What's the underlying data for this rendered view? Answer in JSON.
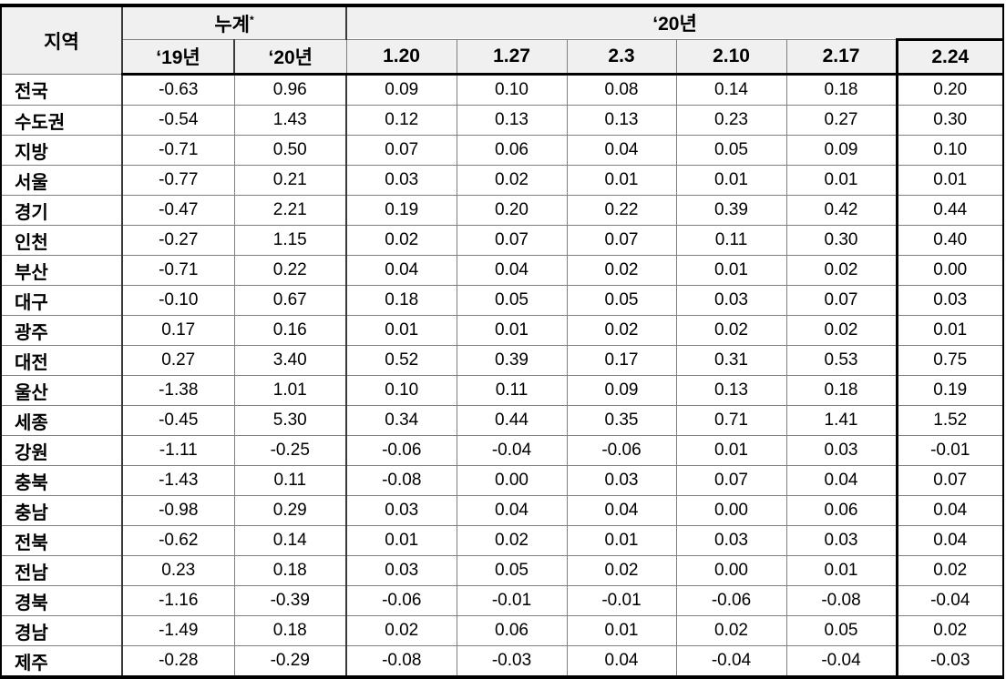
{
  "table": {
    "region_header": "지역",
    "groups": {
      "cumulative_label": "누계",
      "cumulative_note_marker": "*",
      "year_2020_label": "‘20년"
    },
    "sub_headers": [
      "‘19년",
      "‘20년",
      "1.20",
      "1.27",
      "2.3",
      "2.10",
      "2.17",
      "2.24"
    ],
    "rows": [
      {
        "region": "전국",
        "values": [
          "-0.63",
          "0.96",
          "0.09",
          "0.10",
          "0.08",
          "0.14",
          "0.18",
          "0.20"
        ]
      },
      {
        "region": "수도권",
        "values": [
          "-0.54",
          "1.43",
          "0.12",
          "0.13",
          "0.13",
          "0.23",
          "0.27",
          "0.30"
        ]
      },
      {
        "region": "지방",
        "values": [
          "-0.71",
          "0.50",
          "0.07",
          "0.06",
          "0.04",
          "0.05",
          "0.09",
          "0.10"
        ]
      },
      {
        "region": "서울",
        "values": [
          "-0.77",
          "0.21",
          "0.03",
          "0.02",
          "0.01",
          "0.01",
          "0.01",
          "0.01"
        ]
      },
      {
        "region": "경기",
        "values": [
          "-0.47",
          "2.21",
          "0.19",
          "0.20",
          "0.22",
          "0.39",
          "0.42",
          "0.44"
        ]
      },
      {
        "region": "인천",
        "values": [
          "-0.27",
          "1.15",
          "0.02",
          "0.07",
          "0.07",
          "0.11",
          "0.30",
          "0.40"
        ]
      },
      {
        "region": "부산",
        "values": [
          "-0.71",
          "0.22",
          "0.04",
          "0.04",
          "0.02",
          "0.01",
          "0.02",
          "0.00"
        ]
      },
      {
        "region": "대구",
        "values": [
          "-0.10",
          "0.67",
          "0.18",
          "0.05",
          "0.05",
          "0.03",
          "0.07",
          "0.03"
        ]
      },
      {
        "region": "광주",
        "values": [
          "0.17",
          "0.16",
          "0.01",
          "0.01",
          "0.02",
          "0.02",
          "0.02",
          "0.01"
        ]
      },
      {
        "region": "대전",
        "values": [
          "0.27",
          "3.40",
          "0.52",
          "0.39",
          "0.17",
          "0.31",
          "0.53",
          "0.75"
        ]
      },
      {
        "region": "울산",
        "values": [
          "-1.38",
          "1.01",
          "0.10",
          "0.11",
          "0.09",
          "0.13",
          "0.18",
          "0.19"
        ]
      },
      {
        "region": "세종",
        "values": [
          "-0.45",
          "5.30",
          "0.34",
          "0.44",
          "0.35",
          "0.71",
          "1.41",
          "1.52"
        ]
      },
      {
        "region": "강원",
        "values": [
          "-1.11",
          "-0.25",
          "-0.06",
          "-0.04",
          "-0.06",
          "0.01",
          "0.03",
          "-0.01"
        ]
      },
      {
        "region": "충북",
        "values": [
          "-1.43",
          "0.11",
          "-0.08",
          "0.00",
          "0.03",
          "0.07",
          "0.04",
          "0.07"
        ]
      },
      {
        "region": "충남",
        "values": [
          "-0.98",
          "0.29",
          "0.03",
          "0.04",
          "0.04",
          "0.00",
          "0.06",
          "0.04"
        ]
      },
      {
        "region": "전북",
        "values": [
          "-0.62",
          "0.14",
          "0.01",
          "0.02",
          "0.01",
          "0.03",
          "0.03",
          "0.04"
        ]
      },
      {
        "region": "전남",
        "values": [
          "0.23",
          "0.18",
          "0.03",
          "0.05",
          "0.02",
          "0.00",
          "0.01",
          "0.02"
        ]
      },
      {
        "region": "경북",
        "values": [
          "-1.16",
          "-0.39",
          "-0.06",
          "-0.01",
          "-0.01",
          "-0.06",
          "-0.08",
          "-0.04"
        ]
      },
      {
        "region": "경남",
        "values": [
          "-1.49",
          "0.18",
          "0.02",
          "0.06",
          "0.01",
          "0.02",
          "0.05",
          "0.02"
        ]
      },
      {
        "region": "제주",
        "values": [
          "-0.28",
          "-0.29",
          "-0.08",
          "-0.03",
          "0.04",
          "-0.04",
          "-0.04",
          "-0.03"
        ]
      }
    ]
  }
}
